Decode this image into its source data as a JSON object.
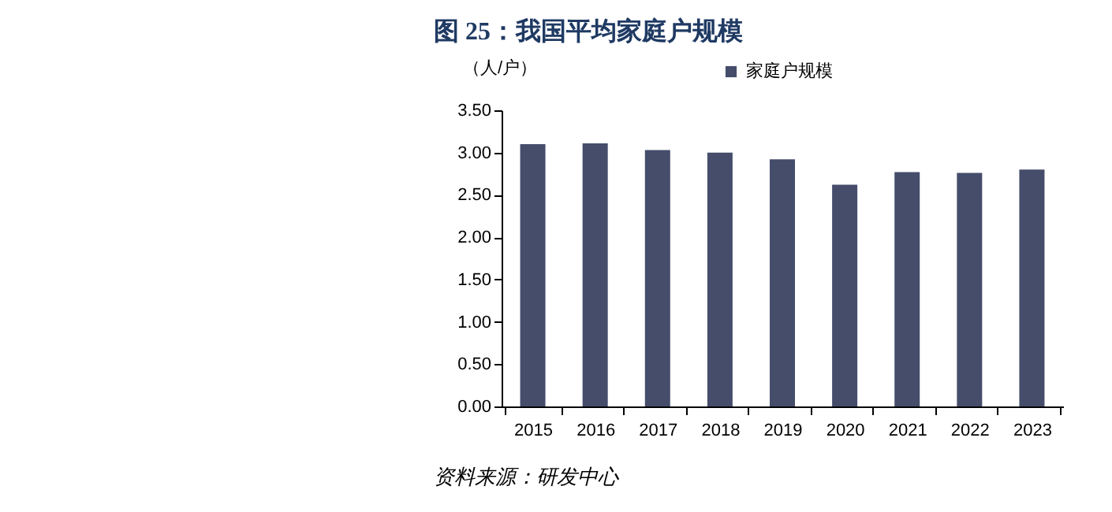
{
  "chart_data": {
    "type": "bar",
    "title": "图 25：我国平均家庭户规模",
    "ylabel": "（人/户）",
    "categories": [
      "2015",
      "2016",
      "2017",
      "2018",
      "2019",
      "2020",
      "2021",
      "2022",
      "2023"
    ],
    "series": [
      {
        "name": "家庭户规模",
        "color": "#454d6b",
        "values": [
          3.1,
          3.11,
          3.03,
          3.0,
          2.92,
          2.62,
          2.77,
          2.76,
          2.8
        ]
      }
    ],
    "ylim": [
      0,
      3.5
    ],
    "yticks": [
      {
        "value": 0,
        "label": "0.00"
      },
      {
        "value": 0.5,
        "label": "0.50"
      },
      {
        "value": 1,
        "label": "1.00"
      },
      {
        "value": 1.5,
        "label": "1.50"
      },
      {
        "value": 2,
        "label": "2.00"
      },
      {
        "value": 2.5,
        "label": "2.50"
      },
      {
        "value": 3,
        "label": "3.00"
      },
      {
        "value": 3.5,
        "label": "3.50"
      }
    ],
    "grid": false,
    "legend": "top",
    "annotations": [
      "资料来源：研发中心"
    ]
  }
}
